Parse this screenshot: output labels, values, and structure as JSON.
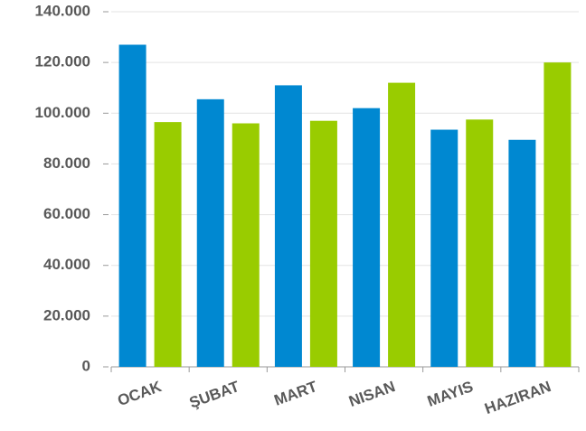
{
  "chart_data": {
    "type": "bar",
    "categories": [
      "OCAK",
      "ŞUBAT",
      "MART",
      "NISAN",
      "MAYIS",
      "HAZIRAN"
    ],
    "series": [
      {
        "color": "#0088d1",
        "values": [
          127000,
          105500,
          111000,
          102000,
          93500,
          89500
        ]
      },
      {
        "color": "#99cc00",
        "values": [
          96500,
          96000,
          97000,
          112000,
          97500,
          120000
        ]
      }
    ],
    "ylim": [
      0,
      140000
    ],
    "yticks": [
      0,
      {
        "value": 20000,
        "label": "20.000"
      },
      {
        "value": 40000,
        "label": "40.000"
      },
      {
        "value": 60000,
        "label": "60.000"
      },
      {
        "value": 80000,
        "label": "80.000"
      },
      {
        "value": 100000,
        "label": "100.000"
      },
      {
        "value": 120000,
        "label": "120.000"
      },
      {
        "value": 140000,
        "label": "140.000"
      }
    ],
    "grid": true
  }
}
